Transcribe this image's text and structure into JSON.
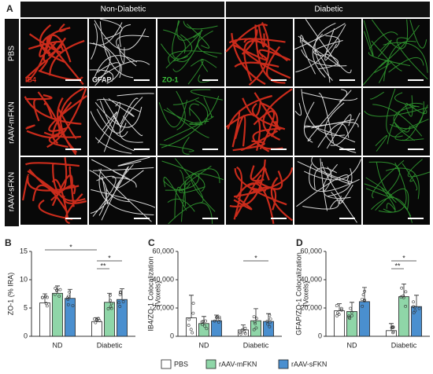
{
  "figure_a": {
    "letter": "A",
    "column_groups": [
      "Non-Diabetic",
      "Diabetic"
    ],
    "rows": [
      "PBS",
      "rAAV-mFKN",
      "rAAV-sFKN"
    ],
    "channels": [
      "IB4",
      "GFAP",
      "ZO-1"
    ]
  },
  "chart_data": [
    {
      "type": "bar",
      "panel": "B",
      "y_label": [
        "ZO-1 (% IRA)"
      ],
      "categories": [
        "ND",
        "Diabetic"
      ],
      "ylim": [
        0,
        15
      ],
      "yticks": [
        0,
        5,
        10,
        15
      ],
      "series": [
        {
          "name": "PBS",
          "color": "#ffffff",
          "values": [
            5.9,
            2.6
          ],
          "errors": [
            1.6,
            0.7
          ]
        },
        {
          "name": "rAAV-mFKN",
          "color": "#8fd6a8",
          "values": [
            7.6,
            6.0
          ],
          "errors": [
            1.3,
            1.6
          ]
        },
        {
          "name": "rAAV-sFKN",
          "color": "#4a8fcf",
          "values": [
            6.7,
            6.5
          ],
          "errors": [
            1.6,
            1.9
          ]
        }
      ],
      "annotations": [
        "*",
        "*",
        "**"
      ]
    },
    {
      "type": "bar",
      "panel": "C",
      "y_label": [
        "IB4/ZO-1 Colocalization",
        "(Voxels)"
      ],
      "categories": [
        "ND",
        "Diabetic"
      ],
      "ylim": [
        0,
        60000
      ],
      "yticks": [
        0,
        {
          "value": 20000,
          "label": "20,000"
        },
        {
          "value": 40000,
          "label": "40,000"
        },
        {
          "value": 60000,
          "label": "60,000"
        }
      ],
      "series": [
        {
          "color": "#ffffff",
          "values": [
            13000,
            4500
          ],
          "errors": [
            16000,
            3500
          ]
        },
        {
          "color": "#8fd6a8",
          "values": [
            9000,
            11000
          ],
          "errors": [
            5000,
            8500
          ]
        },
        {
          "color": "#4a8fcf",
          "values": [
            11000,
            10500
          ],
          "errors": [
            4000,
            5500
          ]
        }
      ],
      "annotations": [
        "*"
      ]
    },
    {
      "type": "bar",
      "panel": "D",
      "y_label": [
        "GFAP/ZO-1 Colocalization",
        "(Voxels)"
      ],
      "categories": [
        "ND",
        "Diabetic"
      ],
      "ylim": [
        0,
        60000
      ],
      "yticks": [
        0,
        {
          "value": 20000,
          "label": "20,000"
        },
        {
          "value": 40000,
          "label": "40,000"
        },
        {
          "value": 60000,
          "label": "60,000"
        }
      ],
      "series": [
        {
          "color": "#ffffff",
          "values": [
            18000,
            4000
          ],
          "errors": [
            5000,
            5000
          ]
        },
        {
          "color": "#8fd6a8",
          "values": [
            17500,
            28000
          ],
          "errors": [
            6500,
            9000
          ]
        },
        {
          "color": "#4a8fcf",
          "values": [
            24500,
            21000
          ],
          "errors": [
            10000,
            8000
          ]
        }
      ],
      "annotations": [
        "*",
        "**"
      ]
    }
  ]
}
